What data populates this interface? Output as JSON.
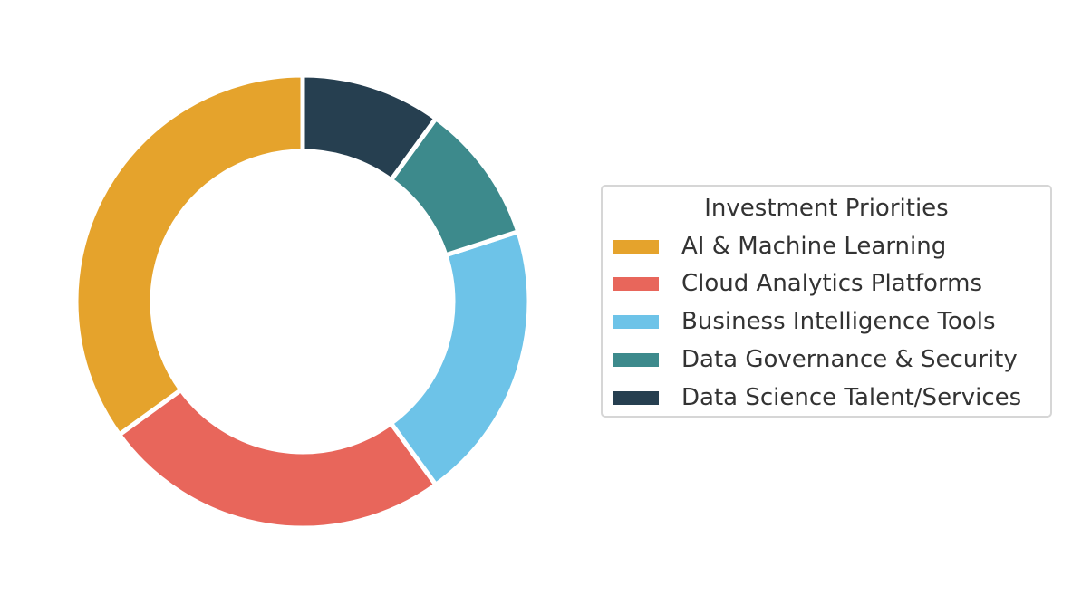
{
  "chart_data": {
    "type": "pie",
    "subtype": "donut",
    "title": "",
    "categories": [
      "AI & Machine Learning",
      "Cloud Analytics Platforms",
      "Business Intelligence Tools",
      "Data Governance & Security",
      "Data Science Talent/Services"
    ],
    "values": [
      35,
      25,
      20,
      10,
      10
    ],
    "colors": [
      "#e5a32c",
      "#e8665b",
      "#6dc3e8",
      "#3d8a8c",
      "#263f50"
    ],
    "start_angle_deg": 90,
    "direction": "counterclockwise",
    "legend": {
      "title": "Investment Priorities",
      "placement": "right"
    }
  }
}
